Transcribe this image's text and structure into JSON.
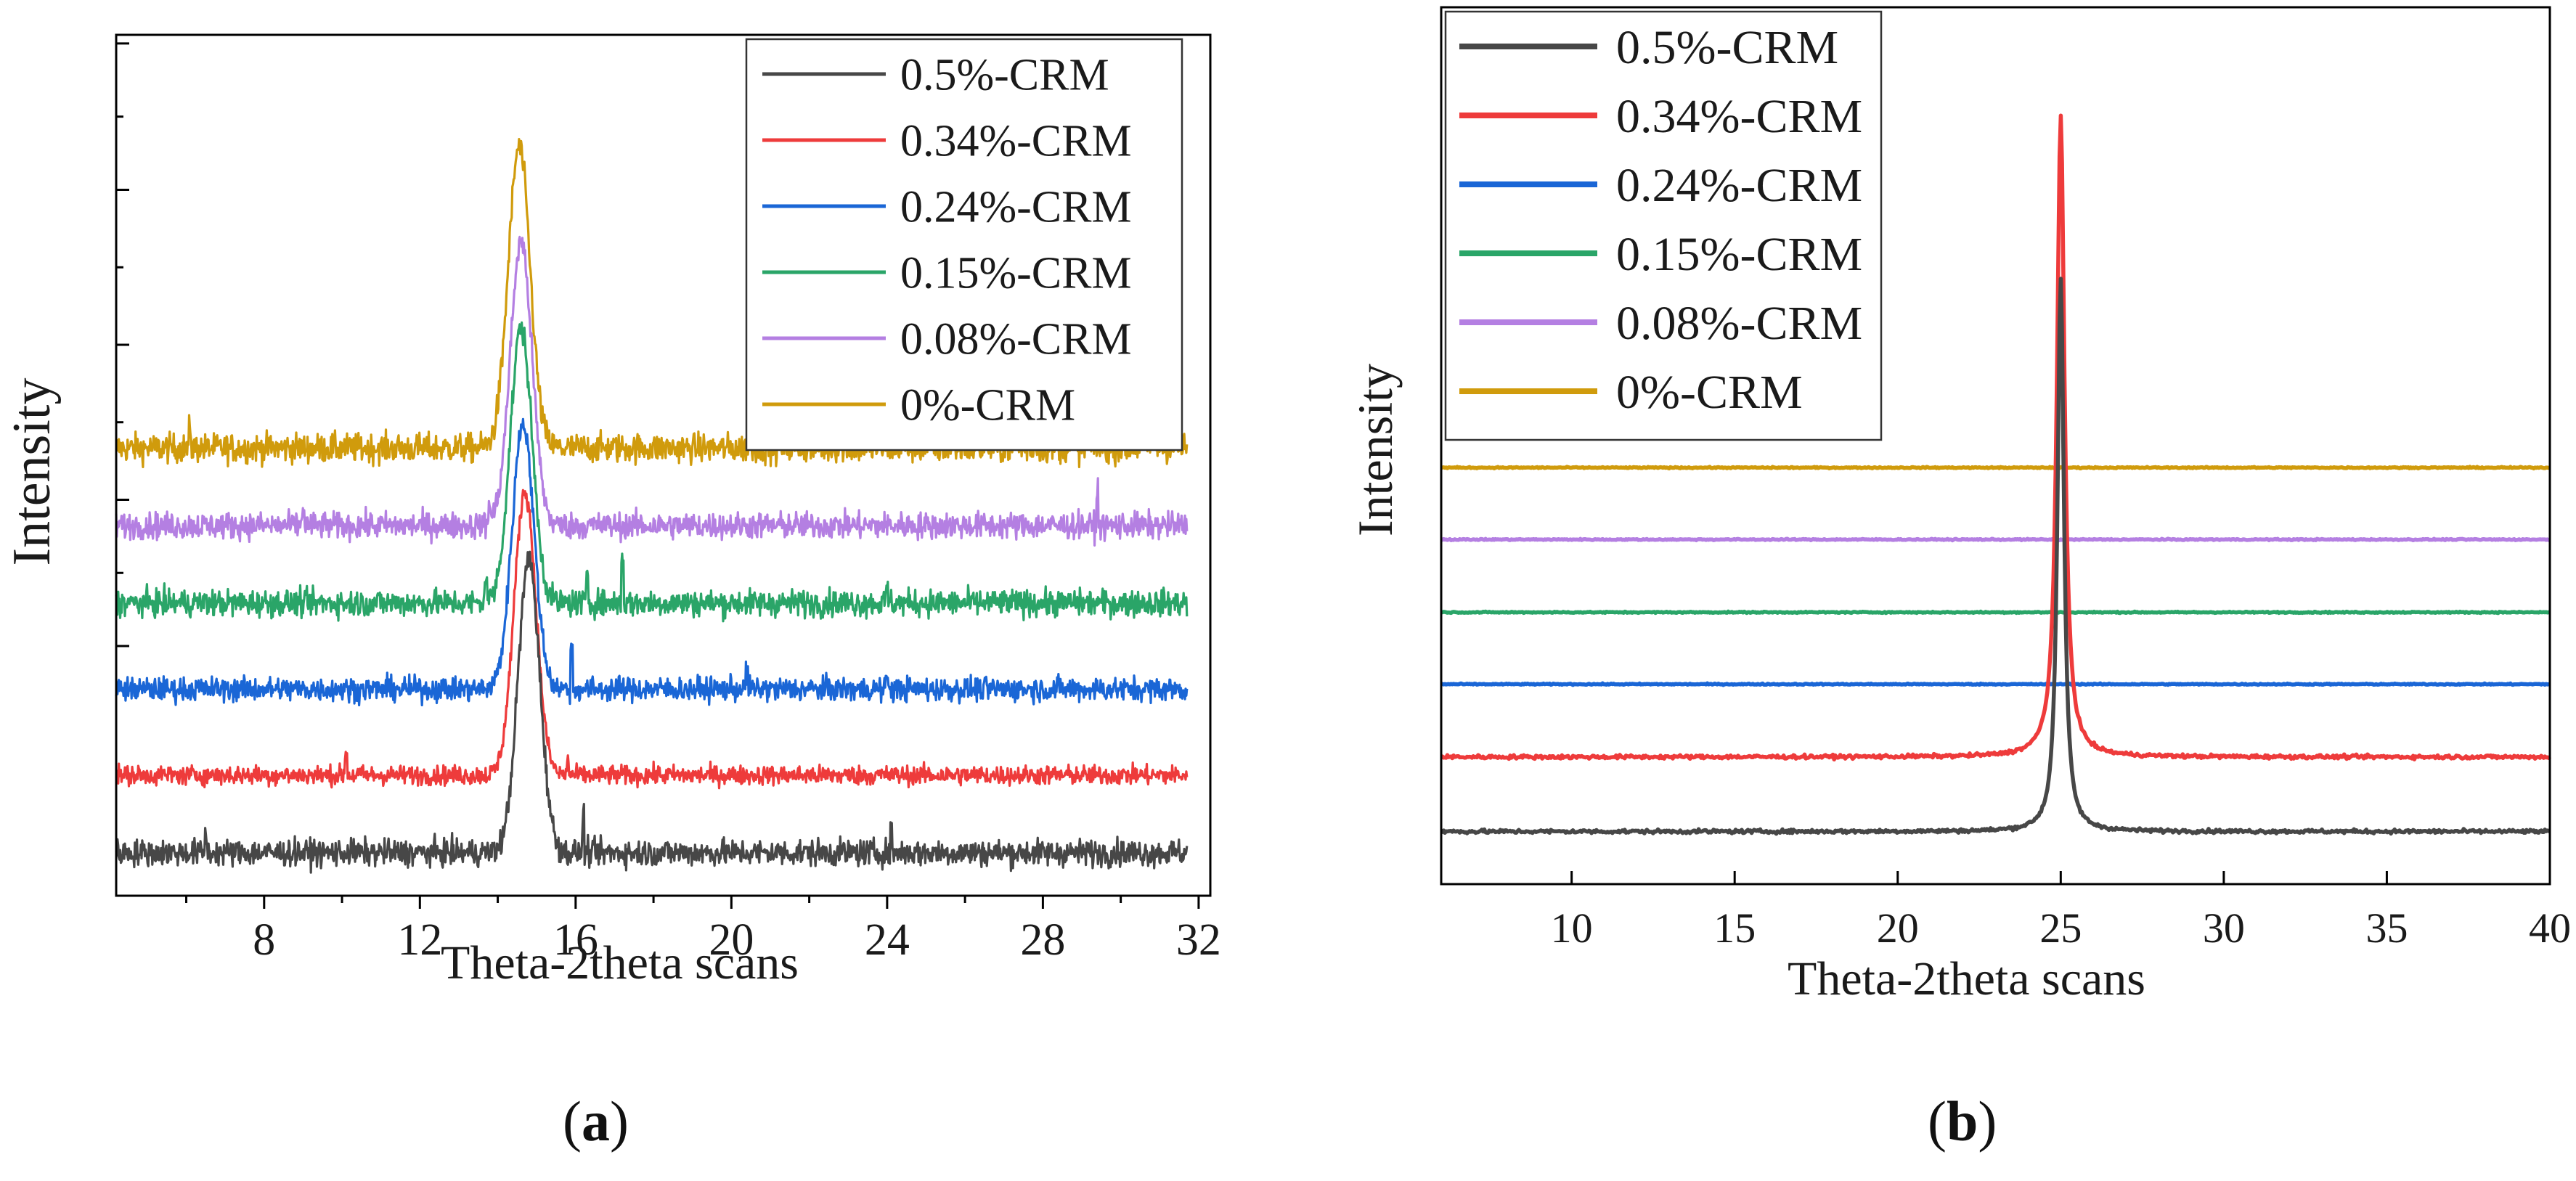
{
  "figure": {
    "panel_labels": [
      {
        "open": "(",
        "letter": "a",
        "close": ")"
      },
      {
        "open": "(",
        "letter": "b",
        "close": ")"
      }
    ]
  },
  "chart_data": [
    {
      "type": "line",
      "panel": "a",
      "xlabel": "Theta-2theta scans",
      "ylabel": "Intensity",
      "xlim": [
        4.2,
        32.3
      ],
      "ylim": [
        0,
        100
      ],
      "xticks": [
        8,
        12,
        16,
        20,
        24,
        28,
        32
      ],
      "x_minor_ticks": [
        6,
        10,
        14,
        18,
        22,
        26,
        30
      ],
      "y_major_ticks": [
        29,
        46,
        64,
        82,
        99
      ],
      "y_minor_ticks": [
        37.5,
        55,
        73,
        90.5
      ],
      "x_range": [
        4.2,
        31.7
      ],
      "legend_position": "top-right",
      "series": [
        {
          "name": "0.5%-CRM",
          "color": "#474747",
          "baseline": 5,
          "peak_x": 14.8,
          "peak_height": 34,
          "peak_width": 0.28,
          "noise": 1.1,
          "spikes": [
            [
              6.5,
              2.5
            ],
            [
              16.2,
              4.5
            ],
            [
              24.1,
              2.0
            ]
          ]
        },
        {
          "name": "0.34%-CRM",
          "color": "#ee3b3b",
          "baseline": 14,
          "peak_x": 14.7,
          "peak_height": 33,
          "peak_width": 0.28,
          "noise": 0.8,
          "spikes": [
            [
              10.1,
              2.5
            ],
            [
              15.8,
              2.0
            ]
          ]
        },
        {
          "name": "0.24%-CRM",
          "color": "#1a66d6",
          "baseline": 24,
          "peak_x": 14.65,
          "peak_height": 31,
          "peak_width": 0.28,
          "noise": 1.0,
          "spikes": [
            [
              15.9,
              4.5
            ],
            [
              20.4,
              2.0
            ],
            [
              24.0,
              2.0
            ]
          ]
        },
        {
          "name": "0.15%-CRM",
          "color": "#2aa568",
          "baseline": 34,
          "peak_x": 14.6,
          "peak_height": 32,
          "peak_width": 0.28,
          "noise": 1.1,
          "spikes": [
            [
              13.7,
              3.0
            ],
            [
              16.3,
              4.0
            ],
            [
              17.2,
              5.0
            ],
            [
              24.0,
              2.0
            ]
          ]
        },
        {
          "name": "0.08%-CRM",
          "color": "#b47fe2",
          "baseline": 43,
          "peak_x": 14.6,
          "peak_height": 33,
          "peak_width": 0.28,
          "noise": 1.1,
          "spikes": [
            [
              9.0,
              2.0
            ],
            [
              13.8,
              2.0
            ],
            [
              29.4,
              4.0
            ]
          ]
        },
        {
          "name": "0%-CRM",
          "color": "#d09b0c",
          "baseline": 52,
          "peak_x": 14.55,
          "peak_height": 35,
          "peak_width": 0.28,
          "noise": 1.2,
          "spikes": [
            [
              6.1,
              2.0
            ],
            [
              30.8,
              2.5
            ]
          ]
        }
      ]
    },
    {
      "type": "line",
      "panel": "b",
      "xlabel": "Theta-2theta scans",
      "ylabel": "Intensity",
      "xlim": [
        6.0,
        40.0
      ],
      "ylim": [
        0,
        100
      ],
      "xticks": [
        10,
        15,
        20,
        25,
        30,
        35,
        40
      ],
      "legend_position": "top-left",
      "series": [
        {
          "name": "0.5%-CRM",
          "color": "#474747",
          "baseline": 6,
          "peak_x": 25.0,
          "peak_height": 63,
          "peak_width": 0.12,
          "noise": 0.15
        },
        {
          "name": "0.34%-CRM",
          "color": "#ee3b3b",
          "baseline": 14.5,
          "peak_x": 25.0,
          "peak_height": 73,
          "peak_width": 0.14,
          "noise": 0.15
        },
        {
          "name": "0.24%-CRM",
          "color": "#1a66d6",
          "baseline": 22.8,
          "peak_x": 25.0,
          "peak_height": 0,
          "peak_width": 0.14,
          "noise": 0.05
        },
        {
          "name": "0.15%-CRM",
          "color": "#2aa568",
          "baseline": 31,
          "peak_x": 25.0,
          "peak_height": 0,
          "peak_width": 0.14,
          "noise": 0.05
        },
        {
          "name": "0.08%-CRM",
          "color": "#b47fe2",
          "baseline": 39.3,
          "peak_x": 25.0,
          "peak_height": 0,
          "peak_width": 0.14,
          "noise": 0.05
        },
        {
          "name": "0%-CRM",
          "color": "#d09b0c",
          "baseline": 47.5,
          "peak_x": 25.0,
          "peak_height": 0,
          "peak_width": 0.14,
          "noise": 0.05
        }
      ]
    }
  ]
}
